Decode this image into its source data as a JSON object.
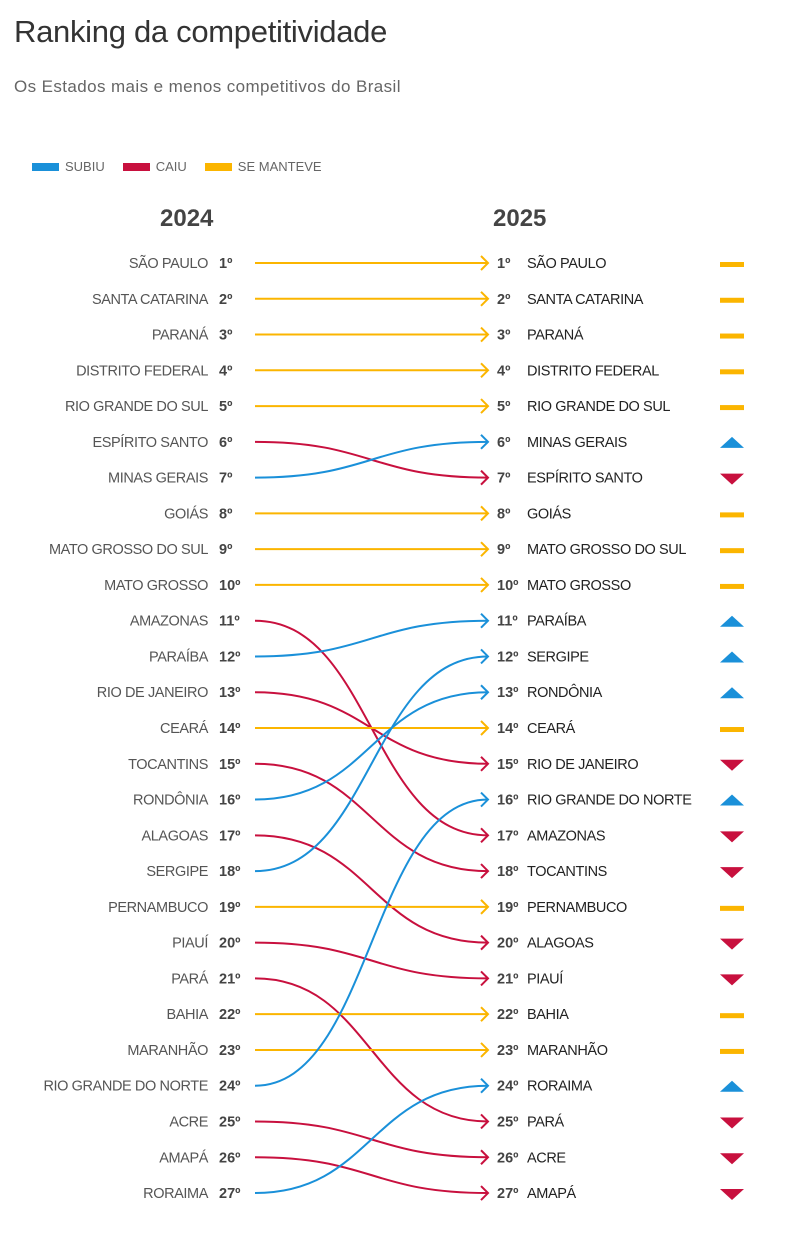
{
  "title": "Ranking da competitividade",
  "subtitle": "Os Estados mais e menos competitivos do Brasil",
  "legend": [
    {
      "label": "SUBIU",
      "color": "#1a90d9",
      "key": "up"
    },
    {
      "label": "CAIU",
      "color": "#c8103e",
      "key": "down"
    },
    {
      "label": "SE MANTEVE",
      "color": "#fbb500",
      "key": "same"
    }
  ],
  "chart_data": {
    "type": "slope",
    "left_label": "2024",
    "right_label": "2025",
    "left_order": [
      "SÃO PAULO",
      "SANTA CATARINA",
      "PARANÁ",
      "DISTRITO FEDERAL",
      "RIO GRANDE DO SUL",
      "ESPÍRITO SANTO",
      "MINAS GERAIS",
      "GOIÁS",
      "MATO GROSSO DO SUL",
      "MATO GROSSO",
      "AMAZONAS",
      "PARAÍBA",
      "RIO DE JANEIRO",
      "CEARÁ",
      "TOCANTINS",
      "RONDÔNIA",
      "ALAGOAS",
      "SERGIPE",
      "PERNAMBUCO",
      "PIAUÍ",
      "PARÁ",
      "BAHIA",
      "MARANHÃO",
      "RIO GRANDE DO NORTE",
      "ACRE",
      "AMAPÁ",
      "RORAIMA"
    ],
    "right_order": [
      "SÃO PAULO",
      "SANTA CATARINA",
      "PARANÁ",
      "DISTRITO FEDERAL",
      "RIO GRANDE DO SUL",
      "MINAS GERAIS",
      "ESPÍRITO SANTO",
      "GOIÁS",
      "MATO GROSSO DO SUL",
      "MATO GROSSO",
      "PARAÍBA",
      "SERGIPE",
      "RONDÔNIA",
      "CEARÁ",
      "RIO DE JANEIRO",
      "RIO GRANDE DO NORTE",
      "AMAZONAS",
      "TOCANTINS",
      "PERNAMBUCO",
      "ALAGOAS",
      "PIAUÍ",
      "BAHIA",
      "MARANHÃO",
      "RORAIMA",
      "PARÁ",
      "ACRE",
      "AMAPÁ"
    ],
    "rank_suffix": "º",
    "colors": {
      "up": "#1a90d9",
      "down": "#c8103e",
      "same": "#fbb500"
    }
  }
}
